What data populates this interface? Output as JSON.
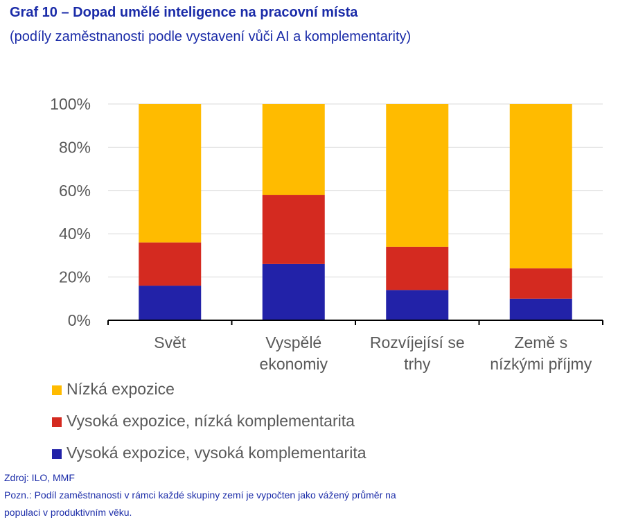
{
  "header": {
    "title": "Graf 10 – Dopad umělé inteligence na pracovní místa",
    "subtitle": "(podíly zaměstnanosti podle vystavení vůči AI a komplementarity)"
  },
  "chart_data": {
    "type": "bar",
    "stacked": true,
    "categories": [
      [
        "Svět"
      ],
      [
        "Vyspělé",
        "ekonomiy"
      ],
      [
        "Rozvíjejísí se",
        "trhy"
      ],
      [
        "Země s",
        "nízkými příjmy"
      ]
    ],
    "series": [
      {
        "name": "Vysoká expozice, vysoká komplementarita",
        "color": "#2222a8",
        "values": [
          16,
          26,
          14,
          10
        ]
      },
      {
        "name": "Vysoká expozice, nízká komplementarita",
        "color": "#d42a20",
        "values": [
          20,
          32,
          20,
          14
        ]
      },
      {
        "name": "Nízká expozice",
        "color": "#ffbb00",
        "values": [
          64,
          42,
          66,
          76
        ]
      }
    ],
    "legend_order": [
      "Nízká expozice",
      "Vysoká expozice, nízká komplementarita",
      "Vysoká expozice, vysoká komplementarita"
    ],
    "legend_placement": "bottom",
    "ylim": [
      0,
      100
    ],
    "yticks": [
      "0%",
      "20%",
      "40%",
      "60%",
      "80%",
      "100%"
    ],
    "grid": true
  },
  "footer": {
    "source": "Zdroj: ILO, MMF",
    "note_line1": "Pozn.: Podíl zaměstnanosti v rámci každé skupiny zemí je vypočten jako vážený průměr na",
    "note_line2": "populaci v produktivním věku."
  }
}
